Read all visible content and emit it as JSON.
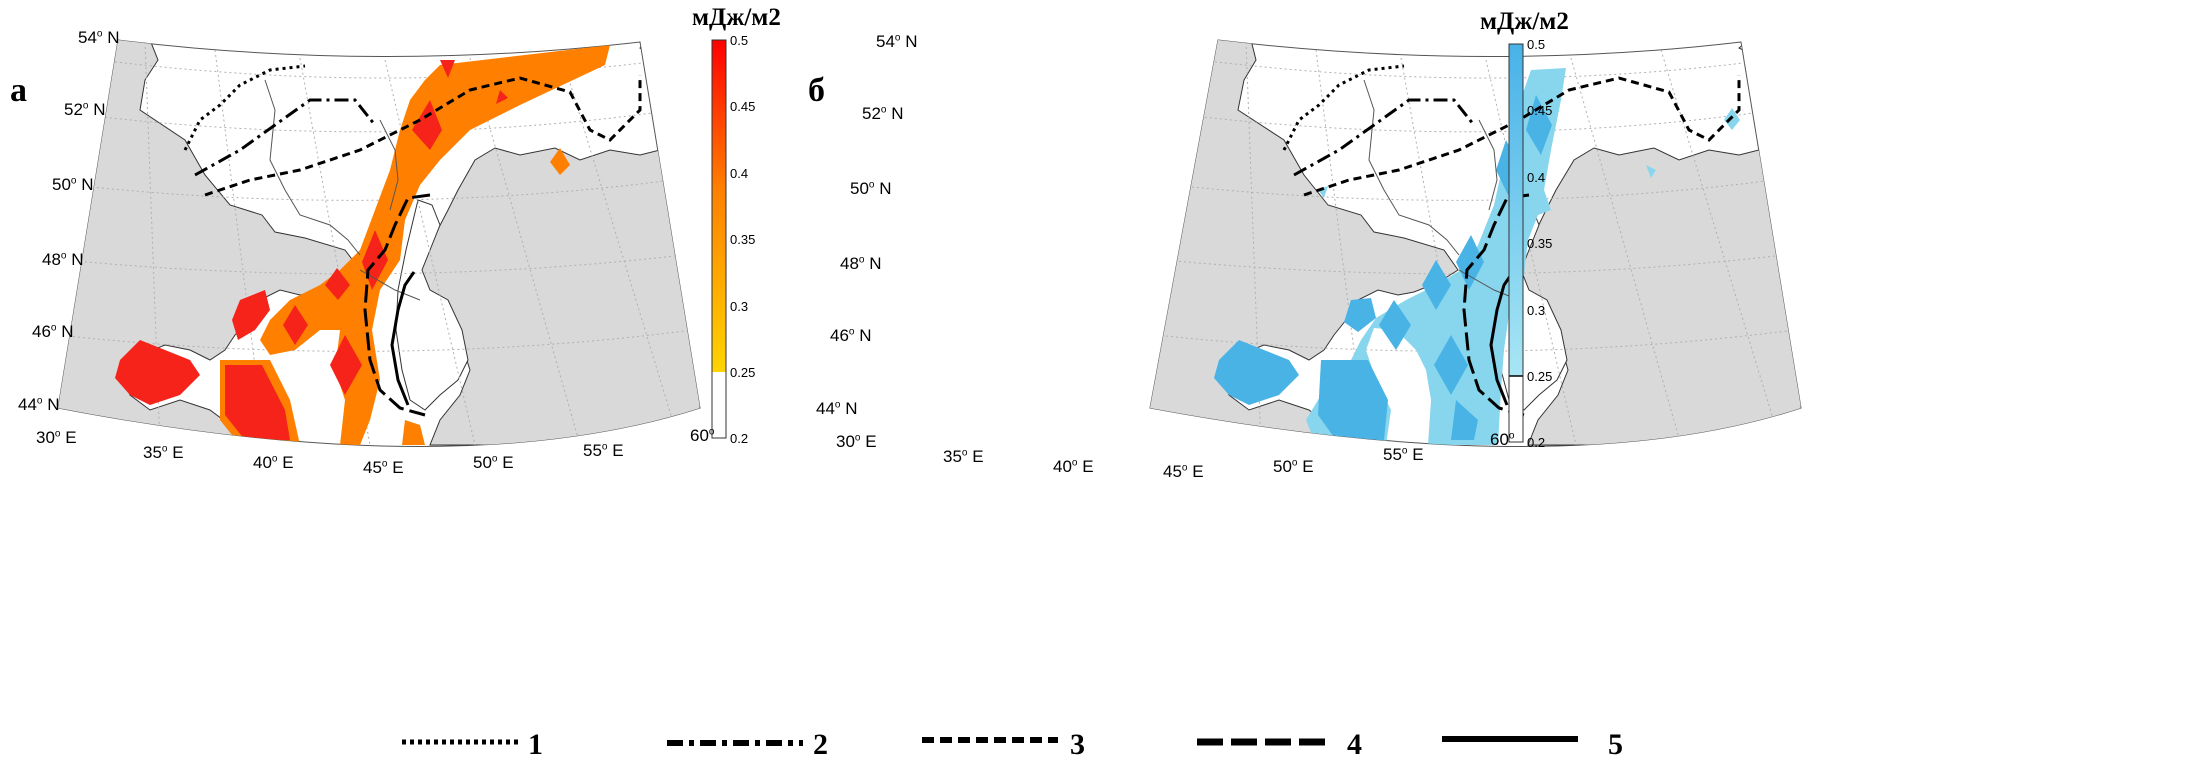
{
  "panels": [
    {
      "id": "a",
      "letter": "а",
      "colorbar": {
        "title": "мДж/м2",
        "ticks": [
          "0.5",
          "0.45",
          "0.4",
          "0.35",
          "0.3",
          "0.25",
          "0.2"
        ]
      },
      "palette": {
        "low": "#ffd400",
        "high": "#ff0000",
        "fill": "#ff8000",
        "peak": "#f5231a"
      }
    },
    {
      "id": "b",
      "letter": "б",
      "colorbar": {
        "title": "мДж/м2",
        "ticks": [
          "0.5",
          "0.45",
          "0.4",
          "0.35",
          "0.3",
          "0.25",
          "0.2"
        ]
      },
      "palette": {
        "low": "#99e1f2",
        "high": "#48b2e8",
        "fill": "#87d6ee",
        "peak": "#4ab3e6"
      }
    }
  ],
  "latitude_labels": [
    "54",
    "52",
    "50",
    "48",
    "46",
    "44"
  ],
  "latitude_suffix": "N",
  "longitude_labels": [
    "30",
    "35",
    "40",
    "45",
    "50",
    "55",
    "60"
  ],
  "longitude_suffix": "E",
  "legend": {
    "items": [
      {
        "number": "1",
        "style": "dotted"
      },
      {
        "number": "2",
        "style": "dash-dot"
      },
      {
        "number": "3",
        "style": "short-dash"
      },
      {
        "number": "4",
        "style": "long-dash"
      },
      {
        "number": "5",
        "style": "solid"
      }
    ]
  },
  "colors": {
    "land_outside": "#d9d9d9",
    "grid": "#b0b0b0",
    "border": "#555555"
  }
}
